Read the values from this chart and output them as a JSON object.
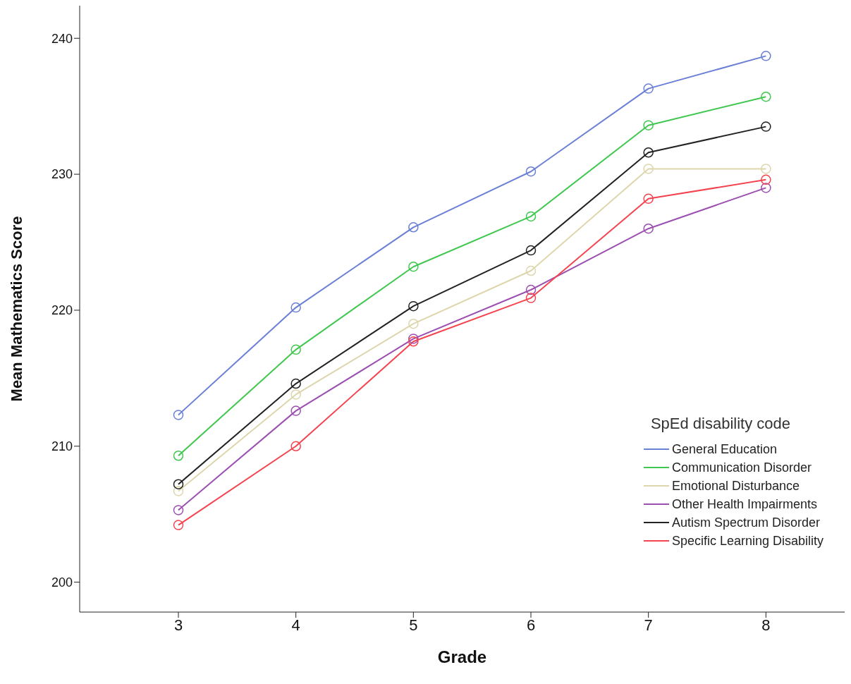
{
  "chart_data": {
    "type": "line",
    "xlabel": "Grade",
    "ylabel": "Mean Mathematics Score",
    "legend_title": "SpEd disability code",
    "x": [
      3,
      4,
      5,
      6,
      7,
      8
    ],
    "series": [
      {
        "name": "General Education",
        "color": "#6a7fd6",
        "values": [
          212.3,
          220.2,
          226.1,
          230.2,
          236.3,
          238.7
        ]
      },
      {
        "name": "Communication Disorder",
        "color": "#3fc74f",
        "values": [
          209.3,
          217.1,
          223.2,
          226.9,
          233.6,
          235.7
        ]
      },
      {
        "name": "Emotional Disturbance",
        "color": "#ddd6ab",
        "values": [
          206.7,
          213.8,
          219.0,
          222.9,
          230.4,
          230.4
        ]
      },
      {
        "name": "Other Health Impairments",
        "color": "#9b4fb0",
        "values": [
          205.3,
          212.6,
          217.9,
          221.5,
          226.0,
          229.0
        ]
      },
      {
        "name": "Autism Spectrum Disorder",
        "color": "#222222",
        "values": [
          207.2,
          214.6,
          220.3,
          224.4,
          231.6,
          233.5
        ]
      },
      {
        "name": "Specific Learning Disability",
        "color": "#f4434f",
        "values": [
          204.2,
          210.0,
          217.7,
          220.9,
          228.2,
          229.6
        ]
      }
    ],
    "xlim": [
      2.16,
      8.67
    ],
    "xticks": [
      3,
      4,
      5,
      6,
      7,
      8
    ],
    "ylim": [
      197.8,
      242.4
    ],
    "yticks": [
      200,
      210,
      220,
      230,
      240
    ],
    "grid": false,
    "legend": "bottom right",
    "marker": "circle",
    "line_style": "solid"
  }
}
